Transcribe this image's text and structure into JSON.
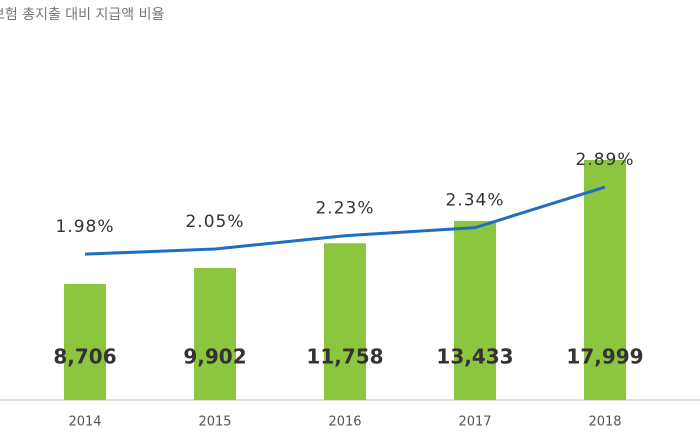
{
  "chart_data": {
    "type": "bar-line",
    "title": "보험 총지출 대비 지급액 비율",
    "categories": [
      "2014",
      "2015",
      "2016",
      "2017",
      "2018"
    ],
    "series": [
      {
        "type": "bar",
        "color": "#8cc63e",
        "values": [
          8706,
          9902,
          11758,
          13433,
          17999
        ],
        "value_labels": [
          "8,706",
          "9,902",
          "11,758",
          "13,433",
          "17,999"
        ]
      },
      {
        "type": "line",
        "axis": "y2",
        "color": "#1f6fc0",
        "values": [
          1.98,
          2.05,
          2.23,
          2.34,
          2.89
        ],
        "value_labels": [
          "1.98%",
          "2.05%",
          "2.23%",
          "2.34%",
          "2.89%"
        ]
      }
    ],
    "ylim": [
      0,
      30000
    ],
    "y2lim": [
      0,
      5.43
    ]
  }
}
